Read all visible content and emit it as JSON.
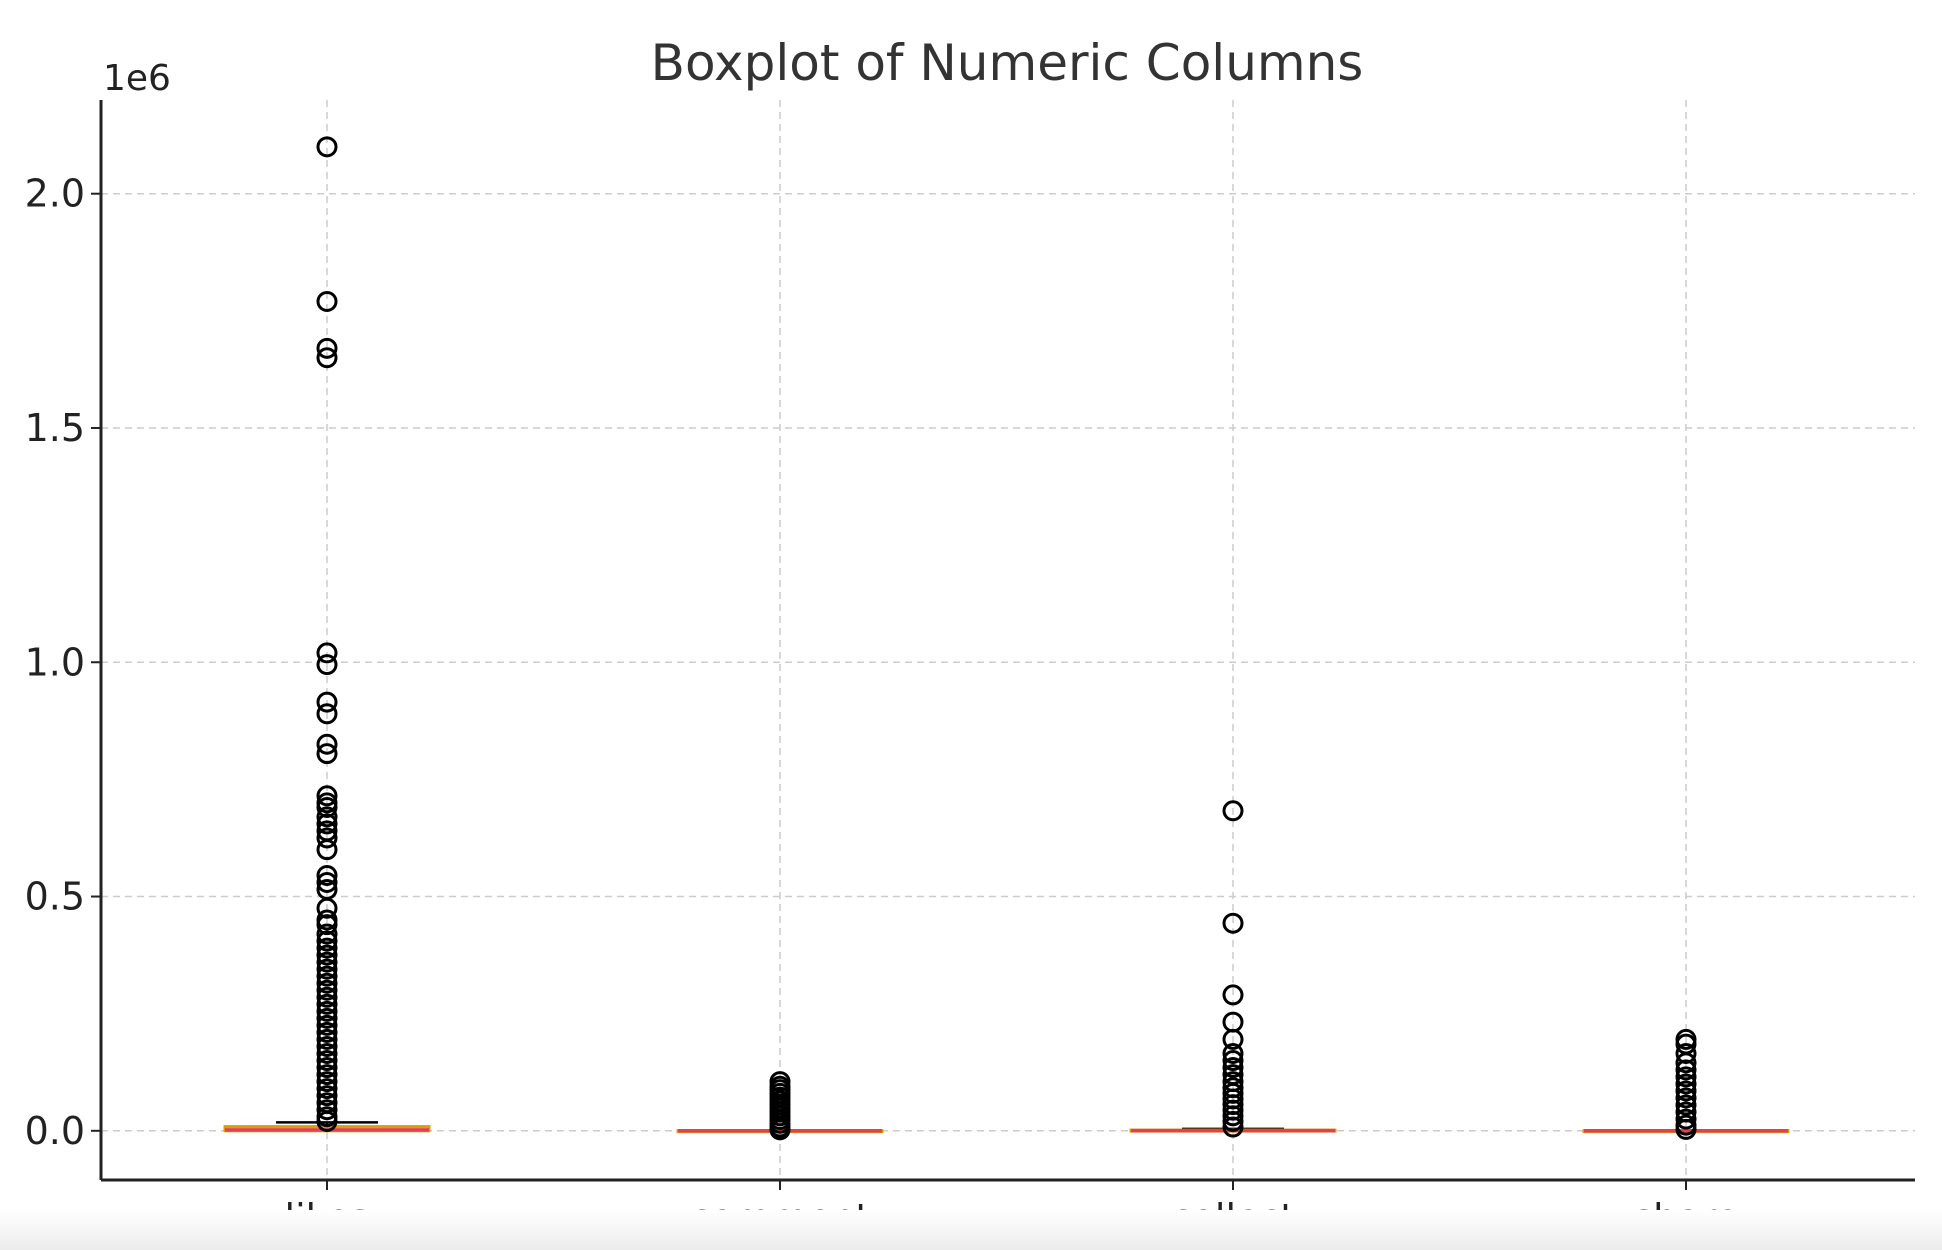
{
  "chart_data": {
    "type": "boxplot",
    "title": "Boxplot of Numeric Columns",
    "y_offset_label": "1e6",
    "ylim": [
      -105000,
      2200000
    ],
    "yticks": [
      0,
      500000,
      1000000,
      1500000,
      2000000
    ],
    "ytick_labels": [
      "0.0",
      "0.5",
      "1.0",
      "1.5",
      "2.0"
    ],
    "grid": true,
    "categories": [
      "likes",
      "comment",
      "collect",
      "share"
    ],
    "series": [
      {
        "q1": 0,
        "median": 2000,
        "q3": 9000,
        "whisker_low": 0,
        "whisker_high": 18000,
        "box_color": "#d9a100",
        "fliers": [
          2100000,
          1770000,
          1670000,
          1650000,
          1020000,
          995000,
          915000,
          890000,
          825000,
          805000,
          715000,
          700000,
          690000,
          670000,
          655000,
          640000,
          625000,
          600000,
          545000,
          530000,
          515000,
          475000,
          450000,
          440000,
          420000,
          405000,
          390000,
          375000,
          360000,
          345000,
          330000,
          315000,
          300000,
          285000,
          270000,
          255000,
          240000,
          225000,
          210000,
          195000,
          180000,
          165000,
          150000,
          135000,
          120000,
          105000,
          90000,
          75000,
          60000,
          45000,
          30000,
          20000
        ]
      },
      {
        "q1": 0,
        "median": 100,
        "q3": 300,
        "whisker_low": 0,
        "whisker_high": 700,
        "box_color": "#d9a100",
        "fliers": [
          105000,
          95000,
          88000,
          80000,
          72000,
          64000,
          56000,
          48000,
          40000,
          32000,
          24000,
          16000,
          8000,
          2000
        ]
      },
      {
        "q1": 0,
        "median": 500,
        "q3": 1500,
        "whisker_low": 0,
        "whisker_high": 4000,
        "box_color": "#d9a100",
        "fliers": [
          683000,
          443000,
          290000,
          232000,
          195000,
          165000,
          150000,
          135000,
          120000,
          105000,
          92000,
          80000,
          68000,
          56000,
          44000,
          32000,
          20000,
          8000
        ]
      },
      {
        "q1": 0,
        "median": 100,
        "q3": 400,
        "whisker_low": 0,
        "whisker_high": 900,
        "box_color": "#d9a100",
        "fliers": [
          195000,
          185000,
          165000,
          145000,
          130000,
          115000,
          100000,
          85000,
          70000,
          55000,
          40000,
          25000,
          12000,
          3000
        ]
      }
    ],
    "colors": {
      "flier": "#000000",
      "median": "#e0434f",
      "box": "#d9a100",
      "grid": "#cccccc"
    }
  }
}
